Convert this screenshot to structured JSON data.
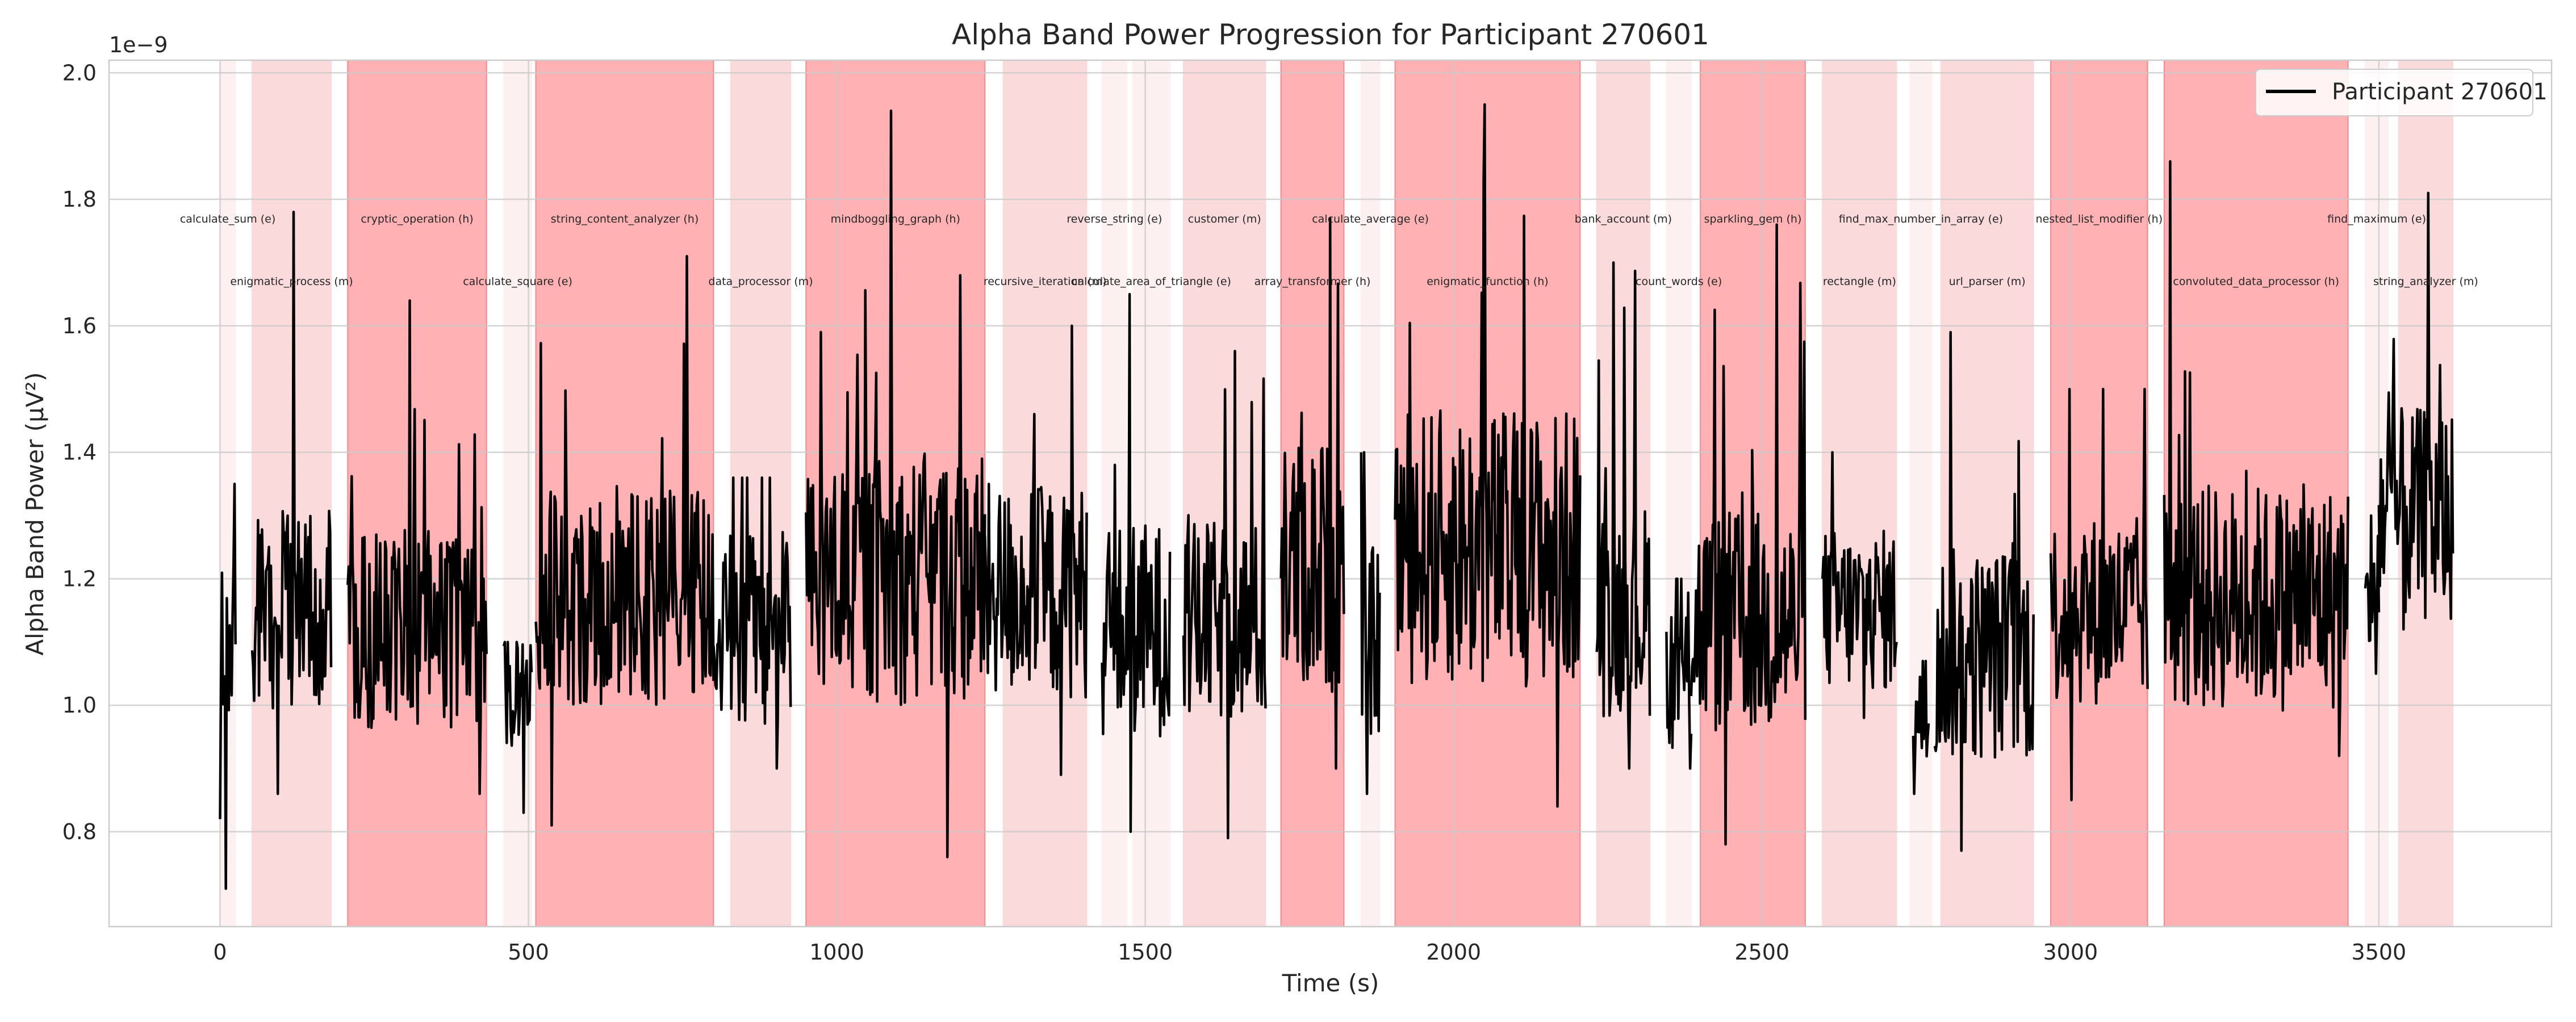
{
  "chart_data": {
    "type": "line",
    "title": "Alpha Band Power Progression for Participant 270601",
    "xlabel": "Time (s)",
    "ylabel": "Alpha Band Power (μV²)",
    "y_offset_label": "1e−9",
    "xlim": [
      -180,
      3780
    ],
    "ylim": [
      0.65,
      2.02
    ],
    "xticks": [
      0,
      500,
      1000,
      1500,
      2000,
      2500,
      3000,
      3500
    ],
    "yticks": [
      0.8,
      1.0,
      1.2,
      1.4,
      1.6,
      1.8,
      2.0
    ],
    "ytick_labels": [
      "0.8",
      "1.0",
      "1.2",
      "1.4",
      "1.6",
      "1.8",
      "2.0"
    ],
    "grid": true,
    "legend": {
      "placement": "top-right",
      "entries": [
        "Participant 270601"
      ]
    },
    "series": [
      {
        "name": "Participant 270601",
        "color": "#000000"
      }
    ],
    "difficulty_colors": {
      "e": "#fdf0f0",
      "m": "#fadadb",
      "h": "#ffb1b3"
    },
    "segments": [
      {
        "label": "calculate_sum (e)",
        "difficulty": "e",
        "start": 0,
        "end": 25,
        "row": 0
      },
      {
        "label": "enigmatic_process (m)",
        "difficulty": "m",
        "start": 52,
        "end": 180,
        "row": 1
      },
      {
        "label": "cryptic_operation (h)",
        "difficulty": "h",
        "start": 207,
        "end": 432,
        "row": 0
      },
      {
        "label": "calculate_square (e)",
        "difficulty": "e",
        "start": 460,
        "end": 505,
        "row": 1
      },
      {
        "label": "string_content_analyzer (h)",
        "difficulty": "h",
        "start": 512,
        "end": 800,
        "row": 0
      },
      {
        "label": "data_processor (m)",
        "difficulty": "m",
        "start": 828,
        "end": 925,
        "row": 1
      },
      {
        "label": "mindboggling_graph (h)",
        "difficulty": "h",
        "start": 950,
        "end": 1240,
        "row": 0
      },
      {
        "label": "recursive_iteration (m)",
        "difficulty": "m",
        "start": 1270,
        "end": 1405,
        "row": 1
      },
      {
        "label": "reverse_string (e)",
        "difficulty": "e",
        "start": 1430,
        "end": 1470,
        "row": 0
      },
      {
        "label": "calculate_area_of_triangle (e)",
        "difficulty": "e",
        "start": 1480,
        "end": 1540,
        "row": 1
      },
      {
        "label": "customer (m)",
        "difficulty": "m",
        "start": 1562,
        "end": 1695,
        "row": 0
      },
      {
        "label": "array_transformer (h)",
        "difficulty": "h",
        "start": 1720,
        "end": 1822,
        "row": 1
      },
      {
        "label": "calculate_average (e)",
        "difficulty": "e",
        "start": 1850,
        "end": 1880,
        "row": 0
      },
      {
        "label": "enigmatic_function (h)",
        "difficulty": "h",
        "start": 1905,
        "end": 2205,
        "row": 1
      },
      {
        "label": "bank_account (m)",
        "difficulty": "m",
        "start": 2232,
        "end": 2318,
        "row": 0
      },
      {
        "label": "count_words (e)",
        "difficulty": "e",
        "start": 2345,
        "end": 2385,
        "row": 1
      },
      {
        "label": "sparkling_gem (h)",
        "difficulty": "h",
        "start": 2400,
        "end": 2570,
        "row": 0
      },
      {
        "label": "rectangle (m)",
        "difficulty": "m",
        "start": 2598,
        "end": 2718,
        "row": 1
      },
      {
        "label": "find_max_number_in_array (e)",
        "difficulty": "e",
        "start": 2740,
        "end": 2775,
        "row": 0
      },
      {
        "label": "url_parser (m)",
        "difficulty": "m",
        "start": 2790,
        "end": 2940,
        "row": 1
      },
      {
        "label": "nested_list_modifier (h)",
        "difficulty": "h",
        "start": 2968,
        "end": 3125,
        "row": 0
      },
      {
        "label": "convoluted_data_processor (h)",
        "difficulty": "h",
        "start": 3152,
        "end": 3450,
        "row": 1
      },
      {
        "label": "find_maximum (e)",
        "difficulty": "e",
        "start": 3478,
        "end": 3515,
        "row": 0
      },
      {
        "label": "string_analyzer (m)",
        "difficulty": "m",
        "start": 3532,
        "end": 3620,
        "row": 1
      }
    ],
    "signal_blocks": [
      {
        "start": 0,
        "end": 25,
        "mean": 1.08,
        "amp": 0.15,
        "min": 0.71,
        "max": 1.35,
        "first": 0.82
      },
      {
        "start": 52,
        "end": 180,
        "mean": 1.15,
        "amp": 0.16,
        "min": 0.86,
        "max": 1.78
      },
      {
        "start": 207,
        "end": 432,
        "mean": 1.12,
        "amp": 0.16,
        "min": 0.86,
        "max": 1.64
      },
      {
        "start": 460,
        "end": 505,
        "mean": 1.02,
        "amp": 0.1,
        "min": 0.83,
        "max": 1.1
      },
      {
        "start": 512,
        "end": 800,
        "mean": 1.17,
        "amp": 0.17,
        "min": 0.81,
        "max": 1.71
      },
      {
        "start": 800,
        "end": 925,
        "mean": 1.12,
        "amp": 0.15,
        "min": 0.9,
        "max": 1.36
      },
      {
        "start": 950,
        "end": 1240,
        "mean": 1.2,
        "amp": 0.2,
        "min": 0.76,
        "max": 1.94
      },
      {
        "start": 1240,
        "end": 1405,
        "mean": 1.18,
        "amp": 0.17,
        "min": 0.89,
        "max": 1.6
      },
      {
        "start": 1430,
        "end": 1540,
        "mean": 1.12,
        "amp": 0.17,
        "min": 0.8,
        "max": 1.65
      },
      {
        "start": 1562,
        "end": 1695,
        "mean": 1.13,
        "amp": 0.16,
        "min": 0.79,
        "max": 1.56
      },
      {
        "start": 1720,
        "end": 1822,
        "mean": 1.22,
        "amp": 0.2,
        "min": 0.9,
        "max": 1.77
      },
      {
        "start": 1850,
        "end": 1880,
        "mean": 1.1,
        "amp": 0.15,
        "min": 0.86,
        "max": 1.4
      },
      {
        "start": 1905,
        "end": 2205,
        "mean": 1.25,
        "amp": 0.22,
        "min": 0.84,
        "max": 1.95
      },
      {
        "start": 2232,
        "end": 2318,
        "mean": 1.15,
        "amp": 0.17,
        "min": 0.9,
        "max": 1.7
      },
      {
        "start": 2345,
        "end": 2385,
        "mean": 1.05,
        "amp": 0.12,
        "min": 0.9,
        "max": 1.2
      },
      {
        "start": 2385,
        "end": 2570,
        "mean": 1.13,
        "amp": 0.18,
        "min": 0.78,
        "max": 1.76
      },
      {
        "start": 2598,
        "end": 2718,
        "mean": 1.15,
        "amp": 0.13,
        "min": 0.98,
        "max": 1.4
      },
      {
        "start": 2745,
        "end": 2770,
        "mean": 0.98,
        "amp": 0.08,
        "min": 0.86,
        "max": 1.07
      },
      {
        "start": 2780,
        "end": 2940,
        "mean": 1.08,
        "amp": 0.17,
        "min": 0.77,
        "max": 1.59
      },
      {
        "start": 2968,
        "end": 3125,
        "mean": 1.15,
        "amp": 0.15,
        "min": 0.85,
        "max": 1.5
      },
      {
        "start": 3152,
        "end": 3450,
        "mean": 1.17,
        "amp": 0.18,
        "min": 0.92,
        "max": 1.86
      },
      {
        "start": 3478,
        "end": 3500,
        "mean": 1.16,
        "amp": 0.08,
        "min": 1.05,
        "max": 1.3
      },
      {
        "start": 3500,
        "end": 3620,
        "mean": 1.3,
        "amp": 0.17,
        "min": 1.12,
        "max": 1.81,
        "last": 1.24
      }
    ]
  }
}
